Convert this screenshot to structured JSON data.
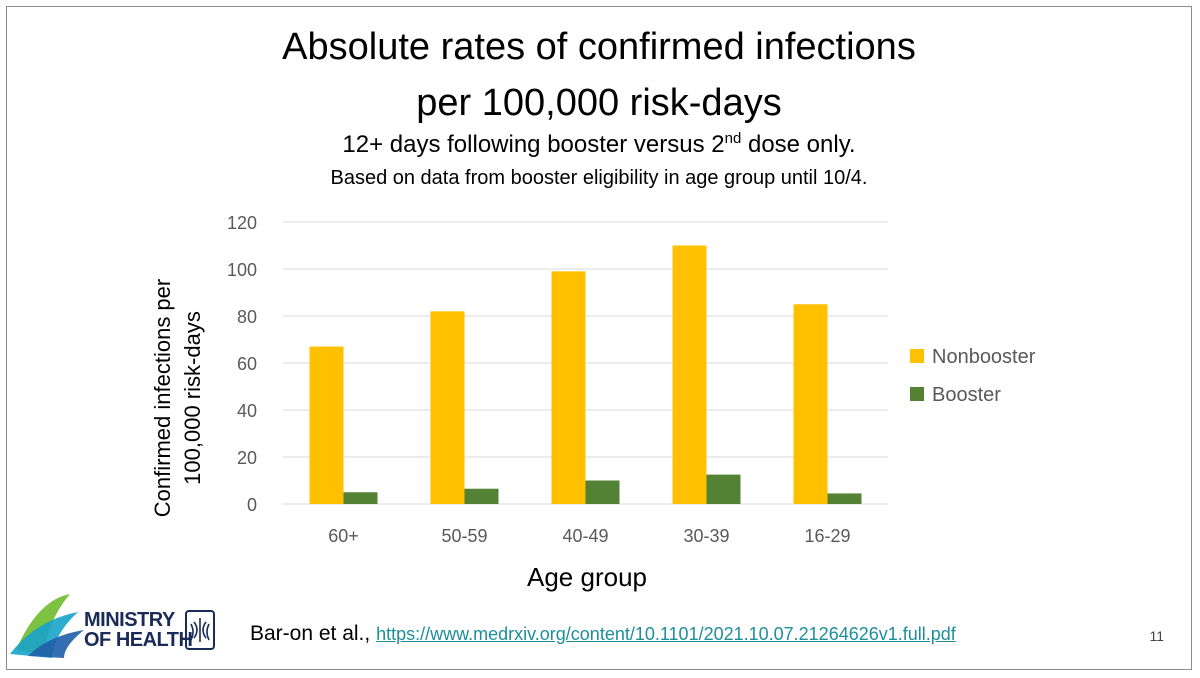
{
  "slide": {
    "title_line1": "Absolute rates of confirmed infections",
    "title_line2": "per 100,000 risk-days",
    "subtitle_pre": "12+ days following booster versus 2",
    "subtitle_sup": "nd",
    "subtitle_post": " dose only.",
    "subtitle2": "Based on data from booster eligibility in age group until 10/4.",
    "logo_line1": "MINISTRY",
    "logo_line2": "OF HEALTH",
    "citation_author": "Bar-on et al.,",
    "citation_url": "https://www.medrxiv.org/content/10.1101/2021.10.07.21264626v1.full.pdf",
    "page_number": "11"
  },
  "colors": {
    "nonbooster": "#FFC000",
    "booster": "#548235",
    "grid": "#d9d9d9",
    "tick_text": "#595959",
    "link": "#1d8f9a"
  },
  "chart_data": {
    "type": "bar",
    "xlabel": "Age group",
    "ylabel_lines": [
      "Confirmed infections per",
      "100,000 risk-days"
    ],
    "categories": [
      "60+",
      "50-59",
      "40-49",
      "30-39",
      "16-29"
    ],
    "series": [
      {
        "name": "Nonbooster",
        "values": [
          67,
          82,
          99,
          110,
          85
        ]
      },
      {
        "name": "Booster",
        "values": [
          5,
          6.5,
          10,
          12.5,
          4.5
        ]
      }
    ],
    "ylim": [
      0,
      120
    ],
    "yticks": [
      0,
      20,
      40,
      60,
      80,
      100,
      120
    ],
    "grid": true,
    "legend_position": "right"
  }
}
